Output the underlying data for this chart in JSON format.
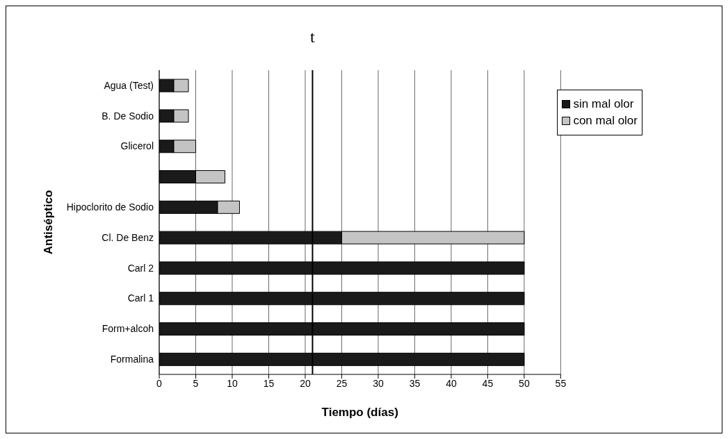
{
  "chart_data": {
    "type": "bar",
    "orientation": "horizontal",
    "stacked": true,
    "categories": [
      "Agua (Test)",
      "B. De Sodio",
      "Glicerol",
      null,
      "Hipoclorito de Sodio",
      "Cl. De Benz",
      "Carl 2",
      "Carl 1",
      "Form+alcoh",
      "Formalina"
    ],
    "series": [
      {
        "name": "sin mal olor",
        "color": "#1a1a1a",
        "values": [
          2,
          2,
          2,
          5,
          8,
          25,
          50,
          50,
          50,
          50
        ]
      },
      {
        "name": "con mal olor",
        "color": "#c4c4c4",
        "values": [
          2,
          2,
          3,
          4,
          3,
          25,
          0,
          0,
          0,
          0
        ]
      }
    ],
    "xlabel": "Tiempo (días)",
    "ylabel": "Antiséptico",
    "xlim": [
      0,
      55
    ],
    "xticks": [
      0,
      5,
      10,
      15,
      20,
      25,
      30,
      35,
      40,
      45,
      50,
      55
    ],
    "grid": "x",
    "legend": "top right",
    "ref_lines": [
      {
        "axis": "x",
        "value": 21,
        "label": "t",
        "color": "#000000"
      }
    ]
  }
}
